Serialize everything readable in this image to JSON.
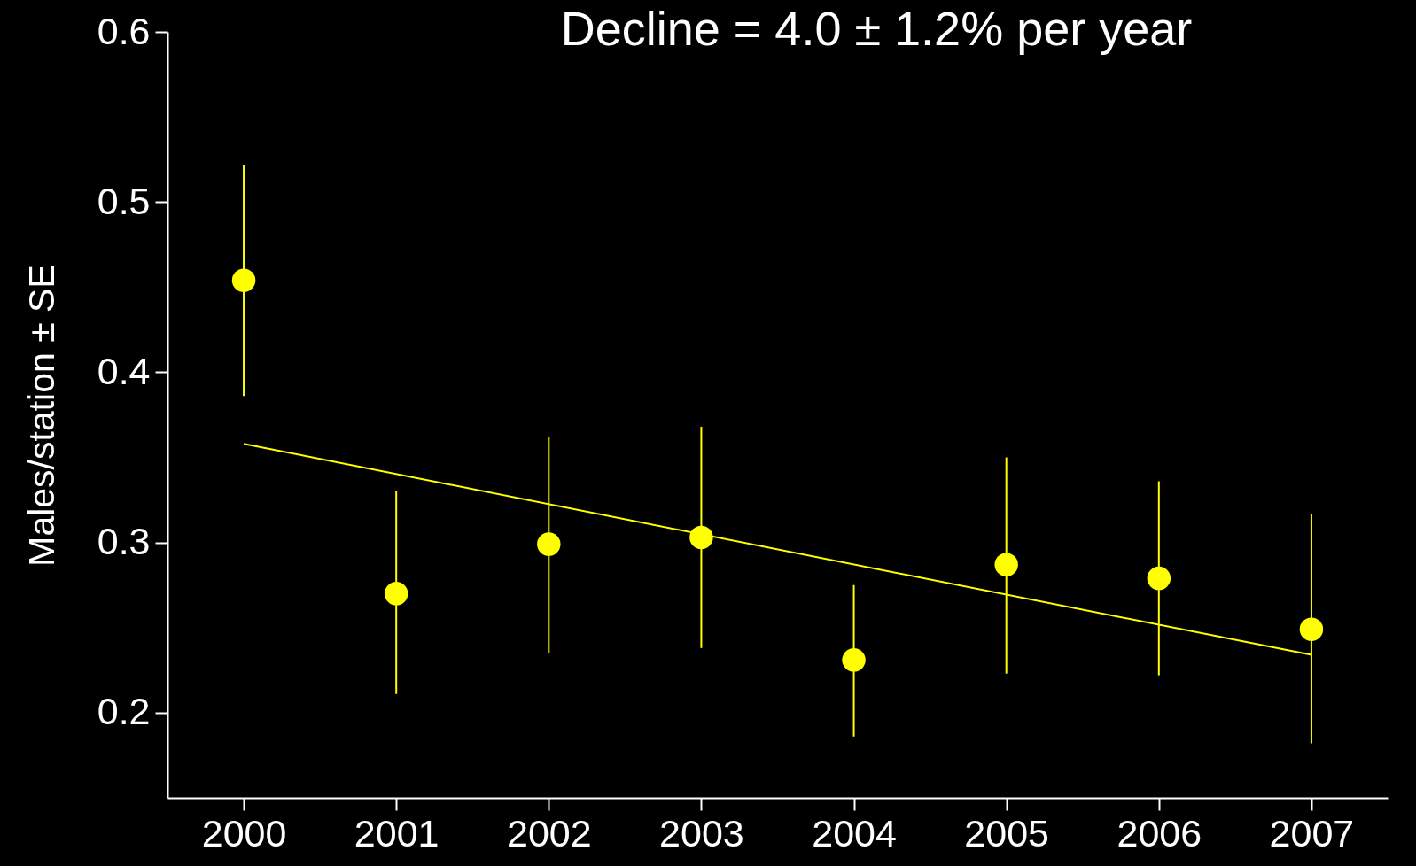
{
  "chart_data": {
    "type": "scatter",
    "ylabel": "Males/station ± SE",
    "x": [
      2000,
      2001,
      2002,
      2003,
      2004,
      2005,
      2006,
      2007
    ],
    "series": [
      {
        "color": "#ffff00",
        "marker": "circle",
        "values": [
          0.454,
          0.27,
          0.299,
          0.303,
          0.231,
          0.287,
          0.279,
          0.249
        ],
        "errors": [
          [
            0.386,
            0.522
          ],
          [
            0.211,
            0.33
          ],
          [
            0.235,
            0.362
          ],
          [
            0.238,
            0.368
          ],
          [
            0.186,
            0.275
          ],
          [
            0.223,
            0.35
          ],
          [
            0.222,
            0.336
          ],
          [
            0.182,
            0.317
          ]
        ]
      },
      {
        "type": "line",
        "color": "#ffff00",
        "x": [
          2000,
          2007
        ],
        "values": [
          0.358,
          0.234
        ]
      }
    ],
    "annotations": [
      "Decline = 4.0 ± 1.2% per year"
    ],
    "xlim": [
      1999.5,
      2007.5
    ],
    "xticks": [
      2000,
      2001,
      2002,
      2003,
      2004,
      2005,
      2006,
      2007
    ],
    "ylim": [
      0.15,
      0.6
    ],
    "yticks": [
      0.2,
      0.3,
      0.4,
      0.5,
      0.6
    ],
    "grid": false
  }
}
